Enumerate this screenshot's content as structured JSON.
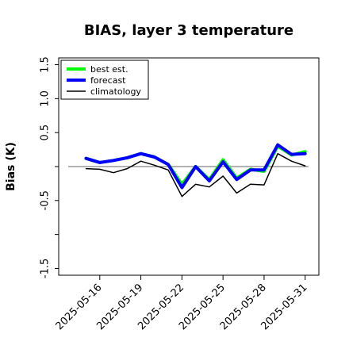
{
  "chart_data": {
    "type": "line",
    "title": "BIAS, layer 3 temperature",
    "xlabel": "",
    "ylabel": "Bias (K)",
    "ylim": [
      -1.6,
      1.6
    ],
    "yticks": [
      -1.5,
      -0.5,
      0.5,
      1.0,
      1.5
    ],
    "yticklabels": [
      "-1.5",
      "-0.5",
      "0.5",
      "1.0",
      "1.5"
    ],
    "yminor_ticks": [
      -1.0,
      0.0
    ],
    "xlim": [
      "2025-05-13",
      "2025-06-01"
    ],
    "xticks": [
      "2025-05-16",
      "2025-05-19",
      "2025-05-22",
      "2025-05-25",
      "2025-05-28",
      "2025-05-31"
    ],
    "xtick_colors": [
      "#000000",
      "#000000",
      "#1a7a1a",
      "#000000",
      "#000000",
      "#000000"
    ],
    "hline": 0,
    "grid": false,
    "legend": "top-left",
    "x": [
      "2025-05-15",
      "2025-05-16",
      "2025-05-17",
      "2025-05-18",
      "2025-05-19",
      "2025-05-20",
      "2025-05-21",
      "2025-05-22",
      "2025-05-23",
      "2025-05-24",
      "2025-05-25",
      "2025-05-26",
      "2025-05-27",
      "2025-05-28",
      "2025-05-29",
      "2025-05-30",
      "2025-05-31"
    ],
    "series": [
      {
        "name": "best est.",
        "color": "#00ff00",
        "width": 4,
        "values": [
          0.12,
          0.06,
          0.09,
          0.13,
          0.19,
          0.14,
          0.03,
          -0.26,
          0.0,
          -0.19,
          0.1,
          -0.17,
          -0.04,
          -0.07,
          0.3,
          0.17,
          0.22
        ]
      },
      {
        "name": "forecast",
        "color": "#0000ff",
        "width": 4,
        "values": [
          0.12,
          0.06,
          0.09,
          0.13,
          0.19,
          0.14,
          0.03,
          -0.31,
          0.0,
          -0.21,
          0.07,
          -0.19,
          -0.05,
          -0.05,
          0.32,
          0.18,
          0.19
        ]
      },
      {
        "name": "climatology",
        "color": "#000000",
        "width": 1.5,
        "values": [
          -0.03,
          -0.04,
          -0.09,
          -0.03,
          0.08,
          0.02,
          -0.05,
          -0.44,
          -0.26,
          -0.3,
          -0.14,
          -0.39,
          -0.26,
          -0.27,
          0.19,
          0.08,
          0.01
        ]
      }
    ]
  }
}
